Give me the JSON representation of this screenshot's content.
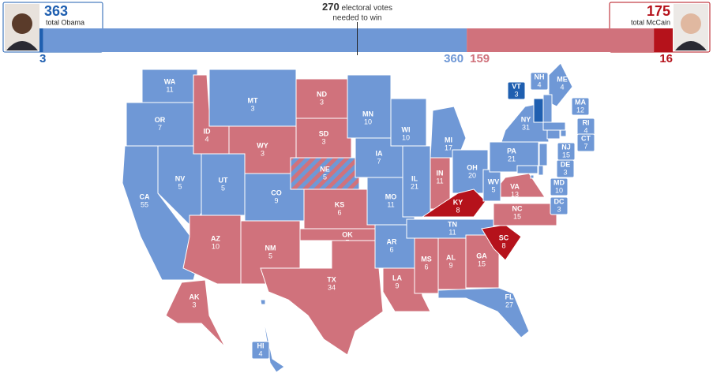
{
  "header": {
    "obama": {
      "total": "363",
      "label": "total Obama"
    },
    "mccain": {
      "total": "175",
      "label": "total McCain"
    }
  },
  "bar": {
    "segments": [
      {
        "value": 3,
        "color": "#1f5fb0"
      },
      {
        "value": 360,
        "color": "#6f98d6"
      },
      {
        "value": 159,
        "color": "#d0727c"
      },
      {
        "value": 16,
        "color": "#b5121b"
      }
    ],
    "threshold": {
      "value": 270,
      "label": [
        "electoral votes",
        "needed to win"
      ]
    }
  },
  "states": [
    {
      "abbr": "WA",
      "votes": "11",
      "color": "#6f98d6"
    },
    {
      "abbr": "OR",
      "votes": "7",
      "color": "#6f98d6"
    },
    {
      "abbr": "CA",
      "votes": "55",
      "color": "#6f98d6"
    },
    {
      "abbr": "NV",
      "votes": "5",
      "color": "#6f98d6"
    },
    {
      "abbr": "ID",
      "votes": "4",
      "color": "#d0727c"
    },
    {
      "abbr": "MT",
      "votes": "3",
      "color": "#6f98d6"
    },
    {
      "abbr": "WY",
      "votes": "3",
      "color": "#d0727c"
    },
    {
      "abbr": "UT",
      "votes": "5",
      "color": "#6f98d6"
    },
    {
      "abbr": "CO",
      "votes": "9",
      "color": "#6f98d6"
    },
    {
      "abbr": "AZ",
      "votes": "10",
      "color": "#d0727c"
    },
    {
      "abbr": "NM",
      "votes": "5",
      "color": "#d0727c"
    },
    {
      "abbr": "ND",
      "votes": "3",
      "color": "#d0727c"
    },
    {
      "abbr": "SD",
      "votes": "3",
      "color": "#d0727c"
    },
    {
      "abbr": "NE",
      "votes": "5",
      "color": "striped"
    },
    {
      "abbr": "KS",
      "votes": "6",
      "color": "#d0727c"
    },
    {
      "abbr": "OK",
      "votes": "7",
      "color": "#d0727c"
    },
    {
      "abbr": "TX",
      "votes": "34",
      "color": "#d0727c"
    },
    {
      "abbr": "MN",
      "votes": "10",
      "color": "#6f98d6"
    },
    {
      "abbr": "IA",
      "votes": "7",
      "color": "#6f98d6"
    },
    {
      "abbr": "MO",
      "votes": "11",
      "color": "#6f98d6"
    },
    {
      "abbr": "AR",
      "votes": "6",
      "color": "#6f98d6"
    },
    {
      "abbr": "LA",
      "votes": "9",
      "color": "#d0727c"
    },
    {
      "abbr": "WI",
      "votes": "10",
      "color": "#6f98d6"
    },
    {
      "abbr": "IL",
      "votes": "21",
      "color": "#6f98d6"
    },
    {
      "abbr": "MI",
      "votes": "17",
      "color": "#6f98d6"
    },
    {
      "abbr": "IN",
      "votes": "11",
      "color": "#d0727c"
    },
    {
      "abbr": "OH",
      "votes": "20",
      "color": "#6f98d6"
    },
    {
      "abbr": "KY",
      "votes": "8",
      "color": "#b5121b"
    },
    {
      "abbr": "TN",
      "votes": "11",
      "color": "#6f98d6"
    },
    {
      "abbr": "MS",
      "votes": "6",
      "color": "#d0727c"
    },
    {
      "abbr": "AL",
      "votes": "9",
      "color": "#d0727c"
    },
    {
      "abbr": "GA",
      "votes": "15",
      "color": "#d0727c"
    },
    {
      "abbr": "FL",
      "votes": "27",
      "color": "#6f98d6"
    },
    {
      "abbr": "SC",
      "votes": "8",
      "color": "#b5121b"
    },
    {
      "abbr": "NC",
      "votes": "15",
      "color": "#d0727c"
    },
    {
      "abbr": "VA",
      "votes": "13",
      "color": "#d0727c"
    },
    {
      "abbr": "WV",
      "votes": "5",
      "color": "#6f98d6"
    },
    {
      "abbr": "PA",
      "votes": "21",
      "color": "#6f98d6"
    },
    {
      "abbr": "NY",
      "votes": "31",
      "color": "#6f98d6"
    },
    {
      "abbr": "ME",
      "votes": "4",
      "color": "#6f98d6"
    },
    {
      "abbr": "VT",
      "votes": "3",
      "color": "#1f5fb0"
    },
    {
      "abbr": "NH",
      "votes": "4",
      "color": "#6f98d6"
    },
    {
      "abbr": "MA",
      "votes": "12",
      "color": "#6f98d6"
    },
    {
      "abbr": "RI",
      "votes": "4",
      "color": "#6f98d6"
    },
    {
      "abbr": "CT",
      "votes": "7",
      "color": "#6f98d6"
    },
    {
      "abbr": "NJ",
      "votes": "15",
      "color": "#6f98d6"
    },
    {
      "abbr": "DE",
      "votes": "3",
      "color": "#6f98d6"
    },
    {
      "abbr": "MD",
      "votes": "10",
      "color": "#6f98d6"
    },
    {
      "abbr": "DC",
      "votes": "3",
      "color": "#6f98d6"
    },
    {
      "abbr": "AK",
      "votes": "3",
      "color": "#d0727c"
    },
    {
      "abbr": "HI",
      "votes": "4",
      "color": "#6f98d6"
    }
  ]
}
